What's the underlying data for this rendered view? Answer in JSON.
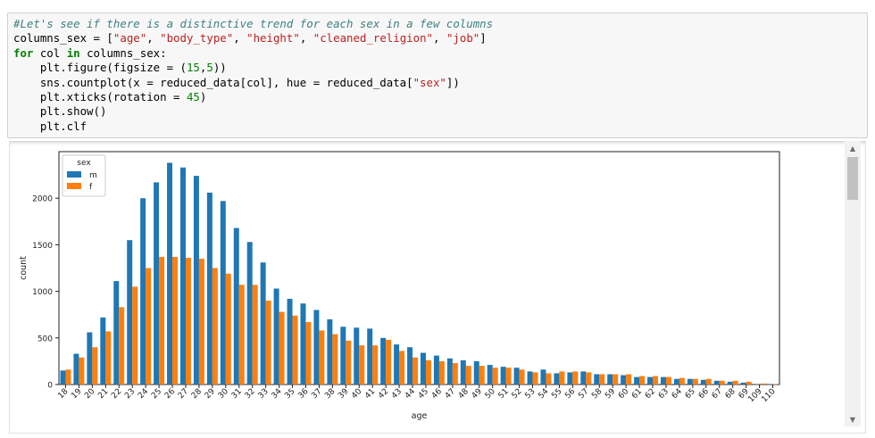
{
  "code_cell": {
    "lines": [
      "#Let's see if there is a distinctive trend for each sex in a few columns",
      "columns_sex = [\"age\", \"body_type\", \"height\", \"cleaned_religion\", \"job\"]",
      "for col in columns_sex:",
      "    plt.figure(figsize = (15,5))",
      "    sns.countplot(x = reduced_data[col], hue = reduced_data[\"sex\"])",
      "    plt.xticks(rotation = 45)",
      "    plt.show()",
      "    plt.clf"
    ]
  },
  "colors": {
    "m": "#1f77b4",
    "f": "#ff7f0e"
  },
  "chart_data": {
    "type": "bar",
    "xlabel": "age",
    "ylabel": "count",
    "ylim": [
      0,
      2500
    ],
    "yticks": [
      0,
      500,
      1000,
      1500,
      2000
    ],
    "legend": {
      "title": "sex",
      "placement": "top-left",
      "entries": [
        "m",
        "f"
      ]
    },
    "categories": [
      "18",
      "19",
      "20",
      "21",
      "22",
      "23",
      "24",
      "25",
      "26",
      "27",
      "28",
      "29",
      "30",
      "31",
      "32",
      "33",
      "34",
      "35",
      "36",
      "37",
      "38",
      "39",
      "40",
      "41",
      "42",
      "43",
      "44",
      "45",
      "46",
      "47",
      "48",
      "49",
      "50",
      "51",
      "52",
      "53",
      "54",
      "55",
      "56",
      "57",
      "58",
      "59",
      "60",
      "61",
      "62",
      "63",
      "64",
      "65",
      "66",
      "67",
      "68",
      "69",
      "109",
      "110"
    ],
    "series": [
      {
        "name": "m",
        "values": [
          150,
          330,
          560,
          720,
          1110,
          1550,
          2000,
          2170,
          2380,
          2330,
          2240,
          2060,
          1970,
          1680,
          1530,
          1310,
          1030,
          920,
          870,
          800,
          700,
          620,
          610,
          600,
          500,
          430,
          400,
          340,
          310,
          280,
          260,
          250,
          210,
          190,
          180,
          140,
          160,
          120,
          130,
          140,
          110,
          110,
          100,
          80,
          80,
          80,
          60,
          60,
          50,
          40,
          30,
          20,
          5,
          5
        ]
      },
      {
        "name": "f",
        "values": [
          160,
          290,
          400,
          570,
          830,
          1050,
          1250,
          1370,
          1370,
          1360,
          1350,
          1250,
          1190,
          1070,
          1070,
          900,
          780,
          740,
          670,
          580,
          540,
          470,
          420,
          420,
          480,
          360,
          290,
          260,
          250,
          230,
          200,
          200,
          180,
          180,
          160,
          130,
          120,
          140,
          140,
          130,
          110,
          110,
          110,
          90,
          90,
          80,
          70,
          60,
          60,
          40,
          40,
          30,
          10,
          5
        ]
      }
    ]
  }
}
